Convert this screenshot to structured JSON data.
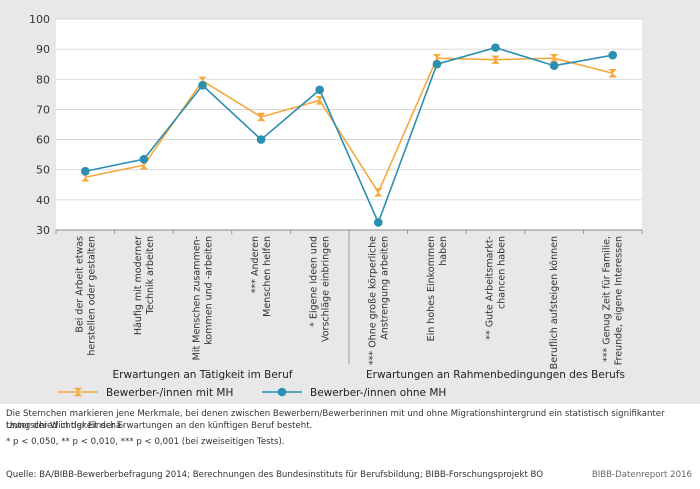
{
  "chart_data": {
    "type": "line",
    "ylim": [
      30,
      100
    ],
    "yticks": [
      30,
      40,
      50,
      60,
      70,
      80,
      90,
      100
    ],
    "grid": true,
    "categories": [
      [
        "Bei der Arbeit etwas",
        "herstellen oder gestalten"
      ],
      [
        "Häufig mit moderner",
        "Technik arbeiten"
      ],
      [
        "Mit Menschen zusammen-",
        "kommen und -arbeiten"
      ],
      [
        "*** Anderen",
        "Menschen helfen"
      ],
      [
        "* Eigene Ideen und",
        "Vorschläge einbringen"
      ],
      [
        "*** Ohne große körperliche",
        "Anstrengung arbeiten"
      ],
      [
        "Ein hohes Einkommen",
        "haben"
      ],
      [
        "** Gute Arbeitsmarkt-",
        "chancen haben"
      ],
      [
        "Beruflich aufsteigen können"
      ],
      [
        "*** Genug Zeit für Familie,",
        "Freunde, eigene Interessen"
      ]
    ],
    "groups": [
      {
        "label": "Erwartungen an Tätigkeit im Beruf",
        "count": 5
      },
      {
        "label": "Erwartungen an Rahmenbedingungen des Berufs",
        "count": 5
      }
    ],
    "series": [
      {
        "name": "Bewerber-/innen mit MH",
        "color": "#f5a93c",
        "marker": "hourglass",
        "values": [
          47.5,
          51.5,
          79.5,
          67.5,
          73,
          42.5,
          87,
          86.5,
          87,
          82
        ]
      },
      {
        "name": "Bewerber-/innen ohne MH",
        "color": "#2a8fb0",
        "marker": "circle",
        "values": [
          49.5,
          53.5,
          78,
          60,
          76.5,
          32.5,
          85,
          90.5,
          84.5,
          88
        ]
      }
    ]
  },
  "notes": {
    "line1": "Die Sternchen markieren jene Merkmale, bei denen zwischen Bewerbern/Bewerberinnen mit und ohne Migrationshintergrund ein statistisch signifikanter Unterschied in der Einschä-",
    "line2": "tzung der Wichtigkeit der Erwartungen an den künftigen Beruf besteht.",
    "significance": "* p < 0,050, ** p < 0,010, *** p < 0,001 (bei zweiseitigen Tests).",
    "source": "Quelle: BA/BIBB-Bewerberbefragung 2014; Berechnungen des Bundesinstituts für Berufsbildung; BIBB-Forschungsprojekt BO",
    "brand": "BIBB-Datenreport 2016"
  }
}
